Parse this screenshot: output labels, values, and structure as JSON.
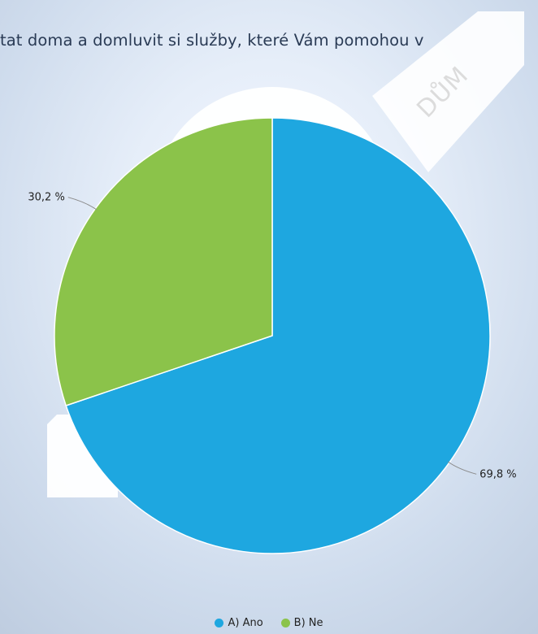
{
  "title": "tat doma a domluvit si služby, které Vám pomohou v",
  "watermark": "DŮM",
  "colors": {
    "series_a": "#1ea7e0",
    "series_b": "#8bc34a"
  },
  "chart_data": {
    "type": "pie",
    "title": "tat doma a domluvit si služby, které Vám pomohou v",
    "categories": [
      "A) Ano",
      "B) Ne"
    ],
    "values": [
      69.8,
      30.2
    ],
    "data_labels": [
      "69,8 %",
      "30,2 %"
    ],
    "legend_position": "bottom"
  }
}
